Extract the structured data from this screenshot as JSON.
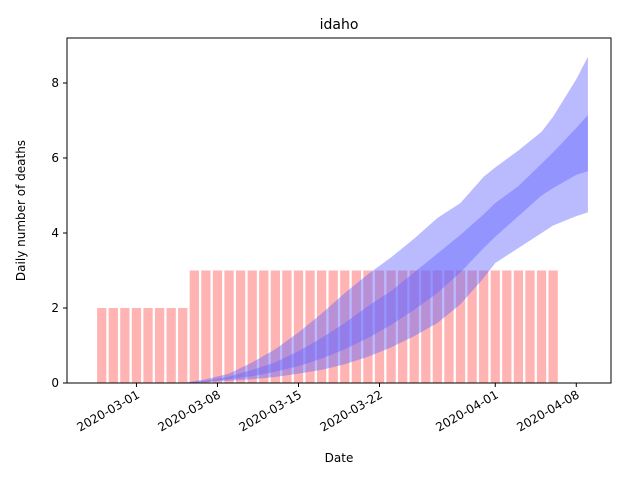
{
  "chart_data": {
    "type": "bar",
    "title": "idaho",
    "xlabel": "Date",
    "ylabel": "Daily number of deaths",
    "x_range": [
      "2020-02-24",
      "2020-04-11"
    ],
    "ylim": [
      0,
      9.2
    ],
    "yticks": [
      0,
      2,
      4,
      6,
      8
    ],
    "xticks": [
      "2020-03-01",
      "2020-03-08",
      "2020-03-15",
      "2020-03-22",
      "2020-04-01",
      "2020-04-08"
    ],
    "grid": false,
    "colors": {
      "bars": "#ff9999",
      "bands": "#6666ff"
    },
    "bars": {
      "start_date": "2020-02-27",
      "values": [
        2,
        2,
        2,
        2,
        2,
        2,
        2,
        2,
        3,
        3,
        3,
        3,
        3,
        3,
        3,
        3,
        3,
        3,
        3,
        3,
        3,
        3,
        3,
        3,
        3,
        3,
        3,
        3,
        3,
        3,
        3,
        3,
        3,
        3,
        3,
        3,
        3,
        3,
        3,
        3
      ]
    },
    "bands": {
      "dates": [
        "2020-02-28",
        "2020-03-01",
        "2020-03-03",
        "2020-03-05",
        "2020-03-07",
        "2020-03-09",
        "2020-03-11",
        "2020-03-13",
        "2020-03-15",
        "2020-03-17",
        "2020-03-19",
        "2020-03-21",
        "2020-03-23",
        "2020-03-25",
        "2020-03-27",
        "2020-03-29",
        "2020-03-31",
        "2020-04-01",
        "2020-04-03",
        "2020-04-05",
        "2020-04-06",
        "2020-04-08",
        "2020-04-09"
      ],
      "outer_lower": [
        0,
        0,
        0,
        0,
        0.02,
        0.06,
        0.1,
        0.16,
        0.25,
        0.35,
        0.5,
        0.7,
        0.95,
        1.25,
        1.6,
        2.1,
        2.8,
        3.2,
        3.6,
        4.0,
        4.2,
        4.45,
        4.55
      ],
      "outer_upper": [
        0,
        0,
        0,
        0,
        0.1,
        0.25,
        0.55,
        0.9,
        1.35,
        1.85,
        2.4,
        2.9,
        3.35,
        3.85,
        4.4,
        4.8,
        5.5,
        5.75,
        6.2,
        6.7,
        7.1,
        8.1,
        8.7
      ],
      "inner_lower": [
        0,
        0,
        0,
        0,
        0.03,
        0.1,
        0.18,
        0.3,
        0.45,
        0.65,
        0.9,
        1.2,
        1.55,
        1.95,
        2.4,
        2.95,
        3.6,
        3.9,
        4.45,
        5.0,
        5.2,
        5.55,
        5.65
      ],
      "inner_upper": [
        0,
        0,
        0,
        0,
        0.06,
        0.17,
        0.35,
        0.55,
        0.85,
        1.2,
        1.6,
        2.05,
        2.45,
        2.95,
        3.45,
        3.95,
        4.5,
        4.8,
        5.25,
        5.85,
        6.15,
        6.8,
        7.15
      ]
    }
  }
}
